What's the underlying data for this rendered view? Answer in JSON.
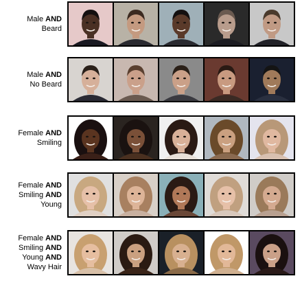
{
  "rows": [
    {
      "label_lines": [
        [
          {
            "t": "Male ",
            "b": false
          },
          {
            "t": "AND",
            "b": true
          }
        ],
        [
          {
            "t": "Beard",
            "b": false
          }
        ]
      ],
      "faces": [
        {
          "bg": "#e6c9c9",
          "hair": "#141010",
          "skin": "#4a3024",
          "shirt": "#1a1a22",
          "long": false
        },
        {
          "bg": "#b8b2a6",
          "hair": "#3b2a20",
          "skin": "#c49a80",
          "shirt": "#2a2a30",
          "long": false
        },
        {
          "bg": "#9fb0b8",
          "hair": "#141010",
          "skin": "#5a3a2a",
          "shirt": "#2a2a30",
          "long": false
        },
        {
          "bg": "#2a2a2a",
          "hair": "#6a5a50",
          "skin": "#b89c8c",
          "shirt": "#1c1c22",
          "long": false
        },
        {
          "bg": "#c8c8c8",
          "hair": "#4a3a2c",
          "skin": "#c09a84",
          "shirt": "#222228",
          "long": false
        }
      ]
    },
    {
      "label_lines": [
        [
          {
            "t": "Male ",
            "b": false
          },
          {
            "t": "AND",
            "b": true
          }
        ],
        [
          {
            "t": "No Beard",
            "b": false
          }
        ]
      ],
      "faces": [
        {
          "bg": "#d8d4d0",
          "hair": "#2a201a",
          "skin": "#d6b09a",
          "shirt": "#2a2a34",
          "long": false
        },
        {
          "bg": "#c8b8b0",
          "hair": "#5a4030",
          "skin": "#caa08a",
          "shirt": "#6a5a50",
          "long": false
        },
        {
          "bg": "#8a8a8a",
          "hair": "#2a2018",
          "skin": "#caa088",
          "shirt": "#3a3a40",
          "long": false
        },
        {
          "bg": "#6a3a30",
          "hair": "#2a1a14",
          "skin": "#c89a80",
          "shirt": "#3a2a24",
          "long": false
        },
        {
          "bg": "#1a2030",
          "hair": "#141414",
          "skin": "#a07a5a",
          "shirt": "#2a3040",
          "long": false
        }
      ]
    },
    {
      "label_lines": [
        [
          {
            "t": "Female ",
            "b": false
          },
          {
            "t": "AND",
            "b": true
          }
        ],
        [
          {
            "t": "Smiling",
            "b": false
          }
        ]
      ],
      "faces": [
        {
          "bg": "#ffffff",
          "hair": "#1a1010",
          "skin": "#5a3420",
          "shirt": "#3a2018",
          "long": true
        },
        {
          "bg": "#2a2420",
          "hair": "#1a1210",
          "skin": "#7a5038",
          "shirt": "#4a3020",
          "long": true
        },
        {
          "bg": "#f0f0f0",
          "hair": "#2a1a14",
          "skin": "#d8b098",
          "shirt": "#e8e0d8",
          "long": true
        },
        {
          "bg": "#b0b8c0",
          "hair": "#6a4a2a",
          "skin": "#caa080",
          "shirt": "#8a6a50",
          "long": true
        },
        {
          "bg": "#e4e4ee",
          "hair": "#b89878",
          "skin": "#e0b8a0",
          "shirt": "#d8c0b0",
          "long": true
        }
      ]
    },
    {
      "label_lines": [
        [
          {
            "t": "Female ",
            "b": false
          },
          {
            "t": "AND",
            "b": true
          }
        ],
        [
          {
            "t": "Smiling ",
            "b": false
          },
          {
            "t": "AND",
            "b": true
          }
        ],
        [
          {
            "t": "Young",
            "b": false
          }
        ]
      ],
      "faces": [
        {
          "bg": "#e0e0e0",
          "hair": "#c8a880",
          "skin": "#e6c0a8",
          "shirt": "#e0d0c4",
          "long": true
        },
        {
          "bg": "#d8d0c8",
          "hair": "#a88060",
          "skin": "#ddb498",
          "shirt": "#c8b0a0",
          "long": true
        },
        {
          "bg": "#8ab0b8",
          "hair": "#2a1a14",
          "skin": "#b07858",
          "shirt": "#6a4838",
          "long": true
        },
        {
          "bg": "#e0dcd8",
          "hair": "#c0a080",
          "skin": "#e6c0a8",
          "shirt": "#d8c8bc",
          "long": true
        },
        {
          "bg": "#d0ccc8",
          "hair": "#9a7a5a",
          "skin": "#d4aa90",
          "shirt": "#b8a090",
          "long": true
        }
      ]
    },
    {
      "label_lines": [
        [
          {
            "t": "Female ",
            "b": false
          },
          {
            "t": "AND",
            "b": true
          }
        ],
        [
          {
            "t": "Smiling ",
            "b": false
          },
          {
            "t": "AND",
            "b": true
          }
        ],
        [
          {
            "t": "Young ",
            "b": false
          },
          {
            "t": "AND",
            "b": true
          }
        ],
        [
          {
            "t": "Wavy Hair",
            "b": false
          }
        ]
      ],
      "faces": [
        {
          "bg": "#e8e4e0",
          "hair": "#c8a070",
          "skin": "#e6bea0",
          "shirt": "#d8c0a8",
          "long": true
        },
        {
          "bg": "#d0ccc8",
          "hair": "#2a1a12",
          "skin": "#caa080",
          "shirt": "#3a2418",
          "long": true
        },
        {
          "bg": "#1a2028",
          "hair": "#b89060",
          "skin": "#d8b090",
          "shirt": "#8a6a48",
          "long": true
        },
        {
          "bg": "#ffffff",
          "hair": "#c09868",
          "skin": "#e2b898",
          "shirt": "#d0b090",
          "long": true
        },
        {
          "bg": "#5a4a60",
          "hair": "#1a1010",
          "skin": "#caa088",
          "shirt": "#2a1a18",
          "long": true
        }
      ]
    }
  ]
}
